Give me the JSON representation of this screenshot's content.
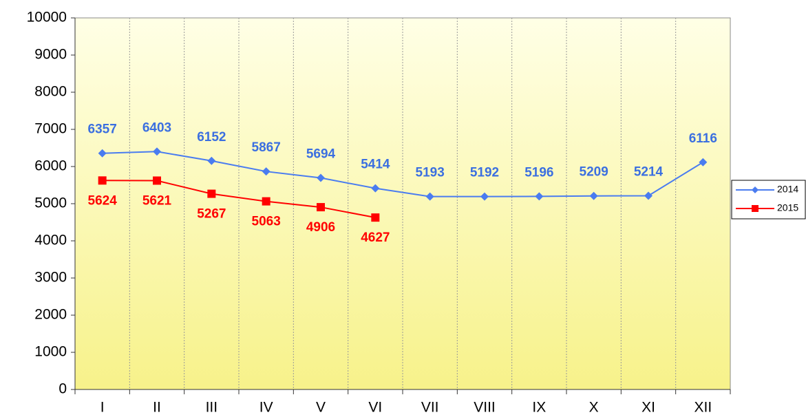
{
  "chart_data": {
    "type": "line",
    "categories": [
      "I",
      "II",
      "III",
      "IV",
      "V",
      "VI",
      "VII",
      "VIII",
      "IX",
      "X",
      "XI",
      "XII"
    ],
    "series": [
      {
        "name": "2014",
        "color": "#4a7cf0",
        "values": [
          6357,
          6403,
          6152,
          5867,
          5694,
          5414,
          5193,
          5192,
          5196,
          5209,
          5214,
          6116
        ]
      },
      {
        "name": "2015",
        "color": "#ff0000",
        "values": [
          5624,
          5621,
          5267,
          5063,
          4906,
          4627,
          null,
          null,
          null,
          null,
          null,
          null
        ]
      }
    ],
    "ylim": [
      0,
      10000
    ],
    "yticks": [
      0,
      1000,
      2000,
      3000,
      4000,
      5000,
      6000,
      7000,
      8000,
      9000,
      10000
    ],
    "grid": true,
    "legend": "right"
  }
}
